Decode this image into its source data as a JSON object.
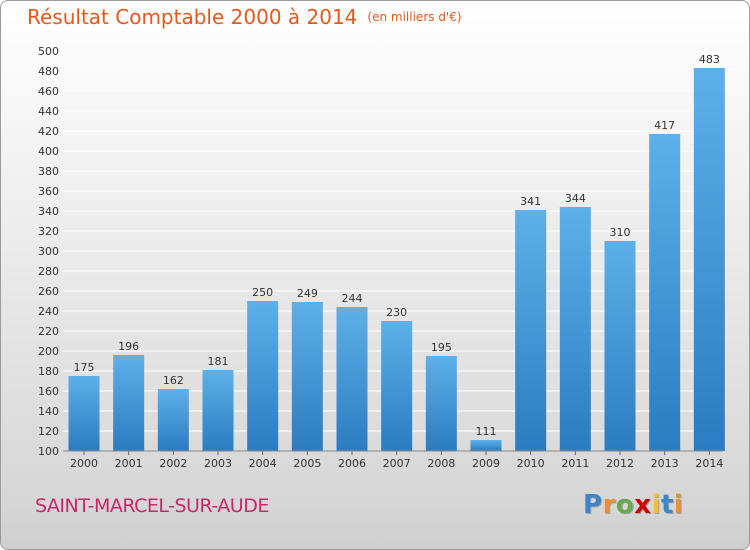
{
  "header": {
    "title": "Résultat Comptable 2000 à 2014",
    "subtitle": "(en milliers d'€)"
  },
  "footer": {
    "commune": "SAINT-MARCEL-SUR-AUDE",
    "logo_letters": [
      "P",
      "r",
      "o",
      "x",
      "i",
      "t",
      "i"
    ],
    "logo_colors": [
      "#3d85c6",
      "#e69138",
      "#6aa84f",
      "#cc0000",
      "#f1c232",
      "#3d85c6",
      "#e69138"
    ]
  },
  "colors": {
    "bar_light": "#5eb0ea",
    "bar_dark": "#2b7cc0",
    "grid": "#ffffff",
    "axis_text": "#333333"
  },
  "chart_data": {
    "type": "bar",
    "categories": [
      "2000",
      "2001",
      "2002",
      "2003",
      "2004",
      "2005",
      "2006",
      "2007",
      "2008",
      "2009",
      "2010",
      "2011",
      "2012",
      "2013",
      "2014"
    ],
    "values": [
      175,
      196,
      162,
      181,
      250,
      249,
      244,
      230,
      195,
      111,
      341,
      344,
      310,
      417,
      483
    ],
    "title": "Résultat Comptable 2000 à 2014",
    "subtitle": "(en milliers d'€)",
    "ylim": [
      100,
      500
    ],
    "yticks": [
      100,
      120,
      140,
      160,
      180,
      200,
      220,
      240,
      260,
      280,
      300,
      320,
      340,
      360,
      380,
      400,
      420,
      440,
      460,
      480,
      500
    ],
    "grid": true
  }
}
